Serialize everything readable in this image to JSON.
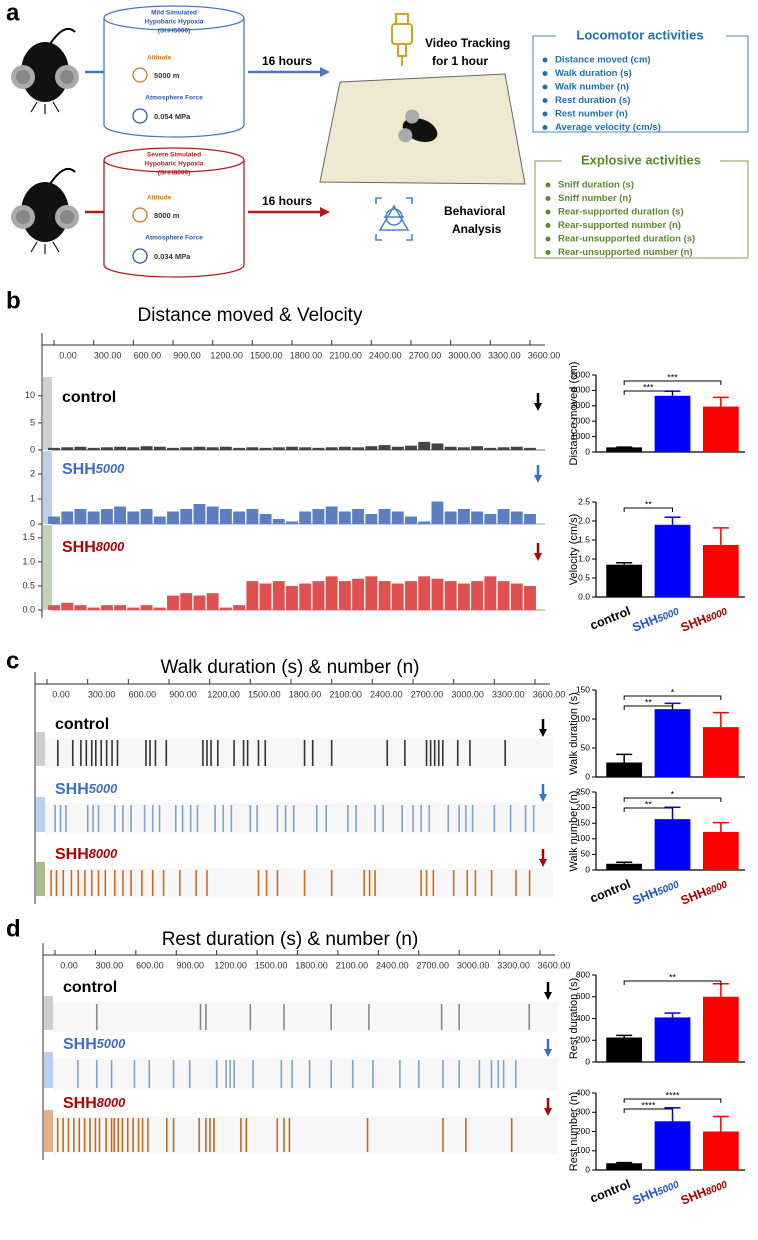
{
  "panel_a": {
    "label": "a",
    "mild": {
      "lines": [
        "Mild Simulated",
        "Hypobaric Hypoxia",
        "(SHH5000)"
      ],
      "altitude_label": "Altitude",
      "altitude": "5000 m",
      "force_label": "Atmosphere Force",
      "force": "0.054 MPa"
    },
    "severe": {
      "lines": [
        "Severe Simulated",
        "Hypobaric Hypoxia",
        "(SHH8000)"
      ],
      "altitude_label": "Altitude",
      "altitude": "8000 m",
      "force_label": "Atmosphere Force",
      "force": "0.034 MPa"
    },
    "duration_top": "16 hours",
    "duration_bottom": "16 hours",
    "video": [
      "Video Tracking",
      "for 1 hour"
    ],
    "analysis": [
      "Behavioral",
      "Analysis"
    ],
    "locomotor": {
      "title": "Locomotor activities",
      "items": [
        "Distance moved (cm)",
        "Walk duration (s)",
        "Walk number (n)",
        "Rest duration (s)",
        "Rest number (n)",
        "Average velocity (cm/s)"
      ]
    },
    "explosive": {
      "title": "Explosive activities",
      "items": [
        "Sniff duration (s)",
        "Sniff number (n)",
        "Rear-supported duration (s)",
        "Rear-supported number (n)",
        "Rear-unsupported duration (s)",
        "Rear-unsupported number (n)"
      ]
    }
  },
  "chart_data": [
    {
      "type": "trace",
      "label": "b",
      "title": "Distance moved & Velocity",
      "xlim": [
        0,
        3600
      ],
      "xticks": [
        {
          "value": 0,
          "label": "0.00"
        },
        {
          "value": 300,
          "label": "300.00"
        },
        {
          "value": 600,
          "label": "600.00"
        },
        {
          "value": 900,
          "label": "900.00"
        },
        {
          "value": 1200,
          "label": "1200.00"
        },
        {
          "value": 1500,
          "label": "1500.00"
        },
        {
          "value": 1800,
          "label": "1800.00"
        },
        {
          "value": 2100,
          "label": "2100.00"
        },
        {
          "value": 2400,
          "label": "2400.00"
        },
        {
          "value": 2700,
          "label": "2700.00"
        },
        {
          "value": 3000,
          "label": "3000.00"
        },
        {
          "value": 3300,
          "label": "3300.00"
        },
        {
          "value": 3600,
          "label": "3600.00"
        }
      ],
      "x": [
        0,
        100,
        200,
        300,
        400,
        500,
        600,
        700,
        800,
        900,
        1000,
        1100,
        1200,
        1300,
        1400,
        1500,
        1600,
        1700,
        1800,
        1900,
        2000,
        2100,
        2200,
        2300,
        2400,
        2500,
        2600,
        2700,
        2800,
        2900,
        3000,
        3100,
        3200,
        3300,
        3400,
        3500,
        3600
      ],
      "tracks": [
        {
          "name": "control",
          "color": "#444444",
          "label_color": "#000000",
          "ylim": [
            0,
            12
          ],
          "yticks": [
            0,
            5,
            10
          ],
          "values": [
            0.4,
            0.5,
            0.6,
            0.4,
            0.5,
            0.6,
            0.5,
            0.7,
            0.6,
            0.4,
            0.5,
            0.6,
            0.5,
            0.6,
            0.4,
            0.5,
            0.4,
            0.5,
            0.6,
            0.5,
            0.4,
            0.5,
            0.6,
            0.5,
            0.7,
            0.9,
            0.6,
            0.8,
            1.5,
            1.2,
            0.6,
            0.5,
            0.7,
            0.4,
            0.5,
            0.6,
            0.4
          ]
        },
        {
          "name": "SHH5000",
          "color": "#5b7fc0",
          "label_color": "#3a6fc4",
          "ylim": [
            0,
            2.6
          ],
          "yticks": [
            0,
            1,
            2
          ],
          "values": [
            0.3,
            0.5,
            0.6,
            0.5,
            0.6,
            0.7,
            0.5,
            0.6,
            0.3,
            0.5,
            0.6,
            0.8,
            0.7,
            0.6,
            0.5,
            0.6,
            0.4,
            0.2,
            0.1,
            0.5,
            0.6,
            0.7,
            0.5,
            0.6,
            0.4,
            0.6,
            0.5,
            0.3,
            0.1,
            0.9,
            0.5,
            0.6,
            0.5,
            0.4,
            0.6,
            0.5,
            0.4
          ]
        },
        {
          "name": "SHH8000",
          "color": "#e05050",
          "label_color": "#b00000",
          "ylim": [
            0,
            1.6
          ],
          "yticks": [
            {
              "value": 0,
              "label": "0.0"
            },
            0.5,
            {
              "value": 1,
              "label": "1.0"
            },
            1.5
          ],
          "values": [
            0.1,
            0.15,
            0.1,
            0.05,
            0.1,
            0.1,
            0.05,
            0.1,
            0.05,
            0.3,
            0.35,
            0.3,
            0.35,
            0.05,
            0.1,
            0.6,
            0.55,
            0.6,
            0.5,
            0.55,
            0.6,
            0.7,
            0.6,
            0.65,
            0.7,
            0.6,
            0.55,
            0.6,
            0.7,
            0.65,
            0.6,
            0.55,
            0.6,
            0.7,
            0.6,
            0.55,
            0.5
          ]
        }
      ]
    },
    {
      "type": "bar",
      "ylabel": "Distance moved (cm)",
      "categories": [
        null,
        null,
        null
      ],
      "values": [
        300,
        3650,
        2950
      ],
      "errors": [
        20,
        300,
        600
      ],
      "colors": [
        "#000000",
        "#0000ff",
        "#ff0000"
      ],
      "ylim": [
        0,
        5000
      ],
      "yticks": [
        0,
        1000,
        2000,
        3000,
        4000,
        5000
      ],
      "significance": [
        {
          "groups": [
            0,
            1
          ],
          "label": "***"
        },
        {
          "groups": [
            0,
            2
          ],
          "label": "***"
        }
      ]
    },
    {
      "type": "bar",
      "ylabel": "Velocity (cm/s)",
      "categories": [
        "control",
        "SHH5000",
        "SHH8000"
      ],
      "label_colors": [
        "#000000",
        "#2255cc",
        "#aa0000"
      ],
      "values": [
        0.85,
        1.9,
        1.37
      ],
      "errors": [
        0.05,
        0.2,
        0.45
      ],
      "colors": [
        "#000000",
        "#0000ff",
        "#ff0000"
      ],
      "ylim": [
        0,
        2.5
      ],
      "yticks": [
        {
          "value": 0,
          "label": "0.0"
        },
        0.5,
        {
          "value": 1,
          "label": "1.0"
        },
        1.5,
        {
          "value": 2,
          "label": "2.0"
        },
        2.5
      ],
      "significance": [
        {
          "groups": [
            0,
            1
          ],
          "label": "**"
        }
      ]
    },
    {
      "type": "events",
      "label": "c",
      "title": "Walk duration (s) & number (n)",
      "xlim": [
        0,
        3600
      ],
      "xticks": [
        {
          "value": 0,
          "label": "0.00"
        },
        {
          "value": 300,
          "label": "300.00"
        },
        {
          "value": 600,
          "label": "600.00"
        },
        {
          "value": 900,
          "label": "900.00"
        },
        {
          "value": 1200,
          "label": "1200.00"
        },
        {
          "value": 1500,
          "label": "1500.00"
        },
        {
          "value": 1800,
          "label": "1800.00"
        },
        {
          "value": 2100,
          "label": "2100.00"
        },
        {
          "value": 2400,
          "label": "2400.00"
        },
        {
          "value": 2700,
          "label": "2700.00"
        },
        {
          "value": 3000,
          "label": "3000.00"
        },
        {
          "value": 3300,
          "label": "3300.00"
        },
        {
          "value": 3600,
          "label": "3600.00"
        }
      ],
      "tracks": [
        {
          "name": "control",
          "color": "#333333",
          "label_color": "#000000",
          "events": [
            80,
            190,
            250,
            290,
            330,
            360,
            400,
            440,
            480,
            520,
            730,
            760,
            800,
            880,
            1150,
            1180,
            1210,
            1260,
            1380,
            1450,
            1480,
            1560,
            1610,
            1900,
            1960,
            2100,
            2510,
            2640,
            2800,
            2830,
            2860,
            2890,
            2920,
            3030,
            3120,
            3380
          ]
        },
        {
          "name": "SHH5000",
          "color": "#7fa3d0",
          "label_color": "#3a6fc4",
          "events": [
            60,
            100,
            140,
            300,
            340,
            380,
            500,
            560,
            620,
            720,
            780,
            830,
            950,
            1000,
            1060,
            1110,
            1240,
            1300,
            1360,
            1500,
            1550,
            1700,
            1760,
            1820,
            1990,
            2060,
            2220,
            2280,
            2420,
            2480,
            2620,
            2700,
            2760,
            2820,
            2960,
            3040,
            3090,
            3140,
            3300,
            3420,
            3530,
            3590
          ]
        },
        {
          "name": "SHH8000",
          "color": "#d2691e",
          "label_color": "#b00000",
          "events": [
            30,
            70,
            120,
            180,
            230,
            280,
            330,
            380,
            430,
            500,
            560,
            620,
            700,
            780,
            860,
            980,
            1100,
            1180,
            1560,
            1620,
            1700,
            1900,
            2100,
            2340,
            2380,
            2420,
            2760,
            2800,
            2850,
            3000,
            3100,
            3160,
            3280,
            3460,
            3560
          ]
        }
      ]
    },
    {
      "type": "bar",
      "ylabel": "Walk duration (s)",
      "categories": [
        null,
        null,
        null
      ],
      "values": [
        25,
        117,
        86
      ],
      "errors": [
        14,
        10,
        25
      ],
      "colors": [
        "#000000",
        "#0000ff",
        "#ff0000"
      ],
      "ylim": [
        0,
        150
      ],
      "yticks": [
        0,
        50,
        100,
        150
      ],
      "significance": [
        {
          "groups": [
            0,
            1
          ],
          "label": "**"
        },
        {
          "groups": [
            0,
            2
          ],
          "label": "*"
        }
      ]
    },
    {
      "type": "bar",
      "ylabel": "Walk number (n)",
      "categories": [
        "control",
        "SHH5000",
        "SHH8000"
      ],
      "label_colors": [
        "#000000",
        "#2255cc",
        "#aa0000"
      ],
      "values": [
        20,
        163,
        122
      ],
      "errors": [
        5,
        38,
        30
      ],
      "colors": [
        "#000000",
        "#0000ff",
        "#ff0000"
      ],
      "ylim": [
        0,
        250
      ],
      "yticks": [
        0,
        50,
        100,
        150,
        200,
        250
      ],
      "significance": [
        {
          "groups": [
            0,
            1
          ],
          "label": "**"
        },
        {
          "groups": [
            0,
            2
          ],
          "label": "*"
        }
      ]
    },
    {
      "type": "events",
      "label": "d",
      "title": "Rest duration (s) & number (n)",
      "xlim": [
        0,
        3600
      ],
      "xticks": [
        {
          "value": 0,
          "label": "0.00"
        },
        {
          "value": 300,
          "label": "300.00"
        },
        {
          "value": 600,
          "label": "600.00"
        },
        {
          "value": 900,
          "label": "900.00"
        },
        {
          "value": 1200,
          "label": "1200.00"
        },
        {
          "value": 1500,
          "label": "1500.00"
        },
        {
          "value": 1800,
          "label": "1800.00"
        },
        {
          "value": 2100,
          "label": "2100.00"
        },
        {
          "value": 2400,
          "label": "2400.00"
        },
        {
          "value": 2700,
          "label": "2700.00"
        },
        {
          "value": 3000,
          "label": "3000.00"
        },
        {
          "value": 3300,
          "label": "3300.00"
        },
        {
          "value": 3600,
          "label": "3600.00"
        }
      ],
      "tracks": [
        {
          "name": "control",
          "color": "#888888",
          "label_color": "#000000",
          "events": [
            310,
            1080,
            1120,
            1450,
            1700,
            2050,
            2330,
            2870,
            3000,
            3520
          ]
        },
        {
          "name": "SHH5000",
          "color": "#7fa3d0",
          "label_color": "#3a6fc4",
          "events": [
            170,
            310,
            420,
            590,
            700,
            880,
            1000,
            1200,
            1270,
            1300,
            1330,
            1470,
            1680,
            1760,
            1890,
            2050,
            2210,
            2360,
            2560,
            2700,
            2880,
            3000,
            3150,
            3240,
            3290,
            3330,
            3420
          ]
        },
        {
          "name": "SHH8000",
          "color": "#c8661e",
          "label_color": "#b00000",
          "events": [
            20,
            60,
            100,
            140,
            180,
            220,
            260,
            300,
            330,
            380,
            420,
            440,
            470,
            500,
            540,
            580,
            620,
            650,
            690,
            830,
            880,
            1070,
            1120,
            1150,
            1180,
            1380,
            1420,
            1650,
            1700,
            1740,
            2320,
            2880,
            3050,
            3390
          ]
        }
      ]
    },
    {
      "type": "bar",
      "ylabel": "Rest duration (s)",
      "categories": [
        null,
        null,
        null
      ],
      "values": [
        225,
        410,
        600
      ],
      "errors": [
        20,
        40,
        120
      ],
      "colors": [
        "#000000",
        "#0000ff",
        "#ff0000"
      ],
      "ylim": [
        0,
        800
      ],
      "yticks": [
        0,
        200,
        400,
        600,
        800
      ],
      "significance": [
        {
          "groups": [
            0,
            2
          ],
          "label": "**"
        }
      ]
    },
    {
      "type": "bar",
      "ylabel": "Rest number (n)",
      "categories": [
        "control",
        "SHH5000",
        "SHH8000"
      ],
      "label_colors": [
        "#000000",
        "#2255cc",
        "#aa0000"
      ],
      "values": [
        35,
        253,
        200
      ],
      "errors": [
        3,
        70,
        78
      ],
      "colors": [
        "#000000",
        "#0000ff",
        "#ff0000"
      ],
      "ylim": [
        0,
        400
      ],
      "yticks": [
        0,
        100,
        200,
        300,
        400
      ],
      "significance": [
        {
          "groups": [
            0,
            1
          ],
          "label": "****"
        },
        {
          "groups": [
            0,
            2
          ],
          "label": "****"
        }
      ]
    }
  ]
}
